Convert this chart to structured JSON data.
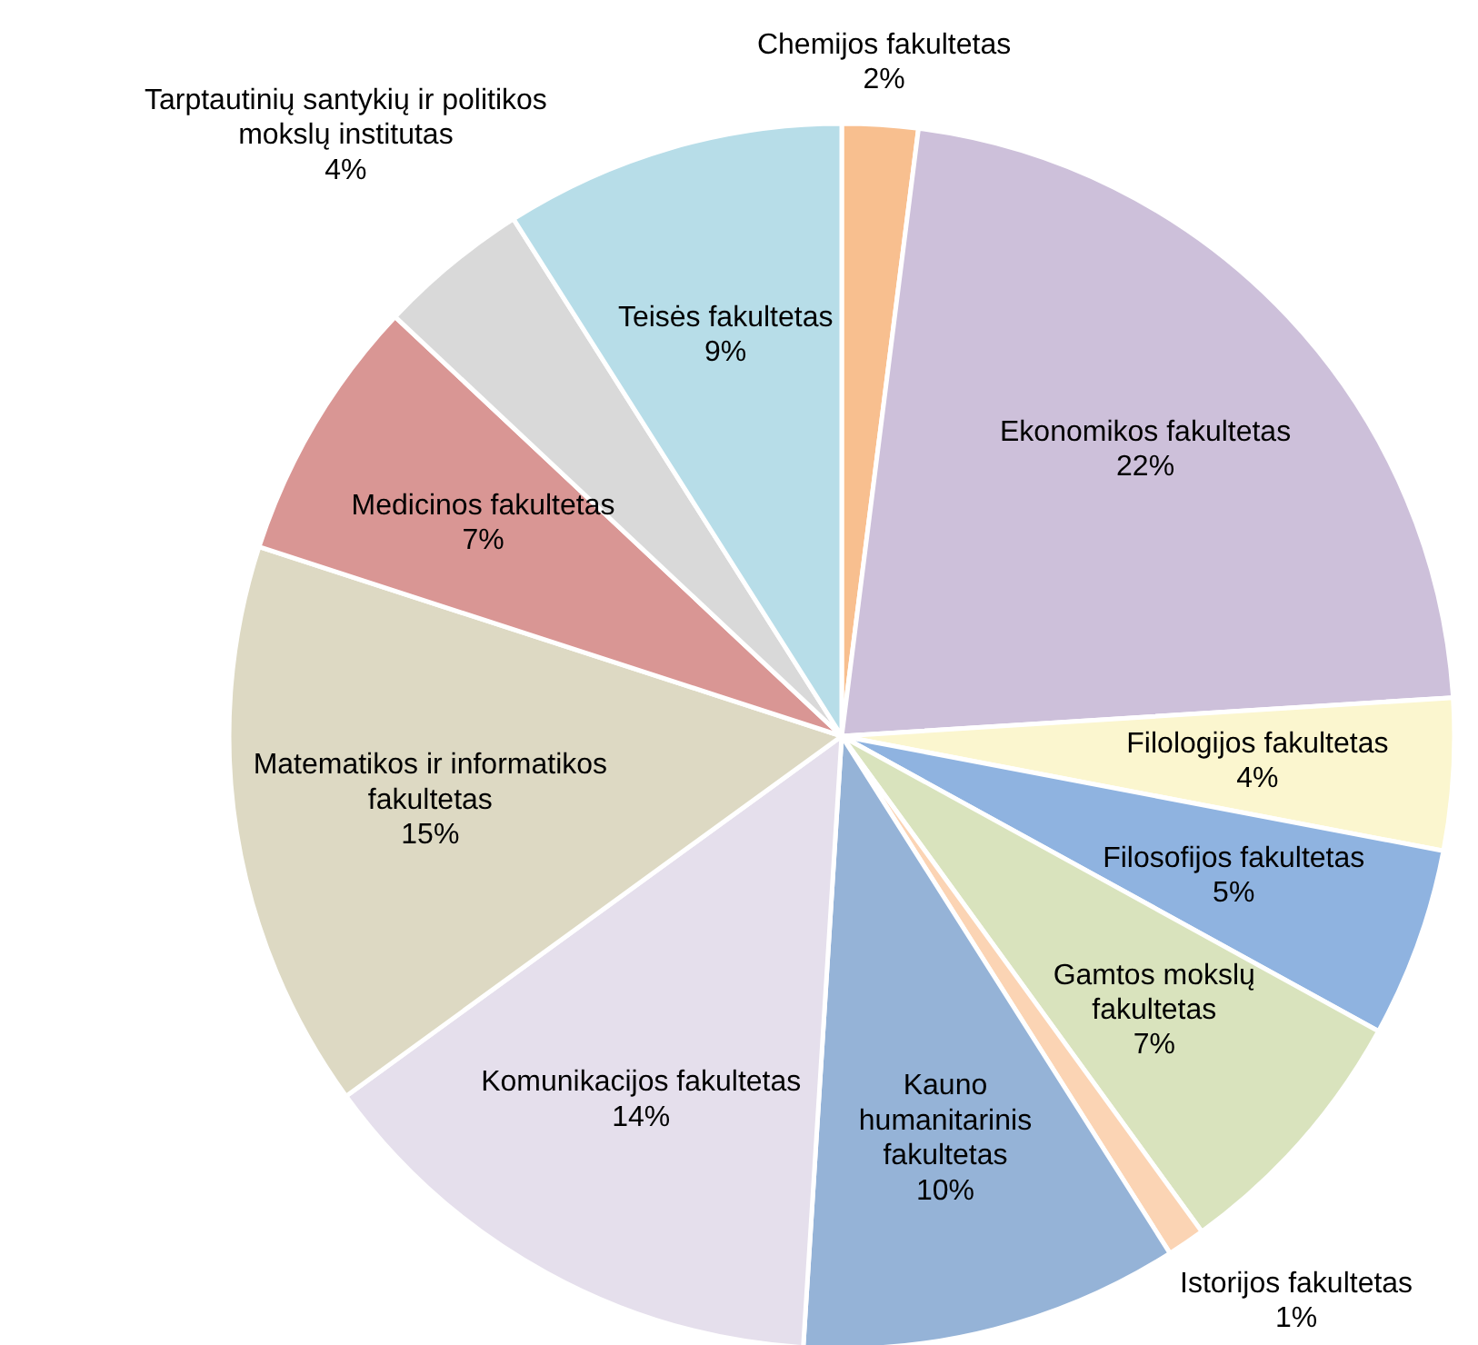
{
  "chart_data": {
    "type": "pie",
    "categories": [
      "Chemijos fakultetas",
      "Ekonomikos fakultetas",
      "Filologijos fakultetas",
      "Filosofijos fakultetas",
      "Gamtos mokslų fakultetas",
      "Istorijos fakultetas",
      "Kauno humanitarinis fakultetas",
      "Komunikacijos fakultetas",
      "Matematikos ir informatikos fakultetas",
      "Medicinos fakultetas",
      "Tarptautinių santykių ir politikos mokslų institutas",
      "Teisės fakultetas"
    ],
    "values": [
      2,
      22,
      4,
      5,
      7,
      1,
      10,
      14,
      15,
      7,
      4,
      9
    ],
    "value_labels": [
      "2%",
      "22%",
      "4%",
      "5%",
      "7%",
      "1%",
      "10%",
      "14%",
      "15%",
      "7%",
      "4%",
      "9%"
    ],
    "colors": [
      "#f8bf8f",
      "#cdc0da",
      "#fbf6cf",
      "#8fb3e0",
      "#d9e3bd",
      "#fbd4b4",
      "#95b3d7",
      "#e5dfec",
      "#ddd9c3",
      "#d99694",
      "#d9d9d9",
      "#b7dde8"
    ]
  }
}
